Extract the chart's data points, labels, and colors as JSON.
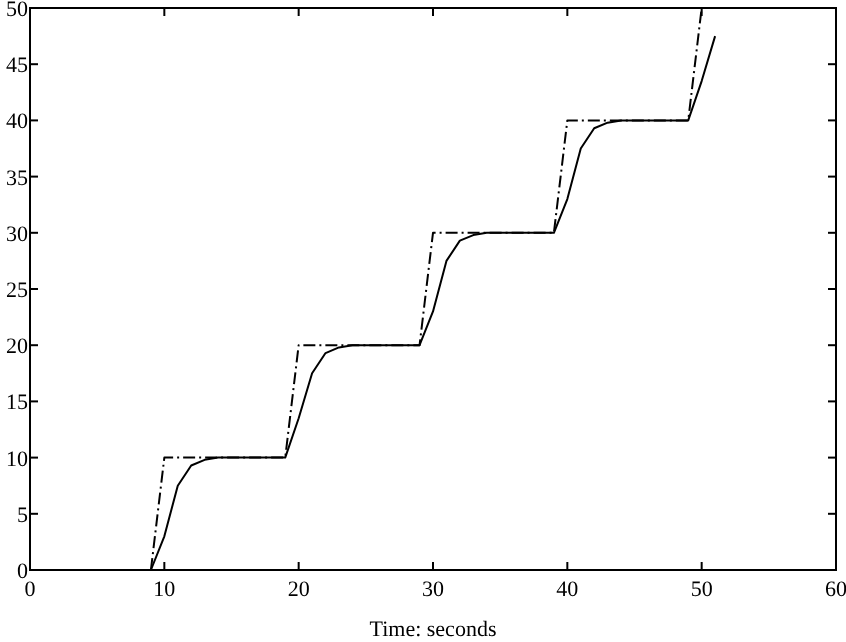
{
  "chart_data": {
    "type": "line",
    "xlabel": "Time: seconds",
    "xlim": [
      0,
      60
    ],
    "xticks": [
      0,
      10,
      20,
      30,
      40,
      50,
      60
    ],
    "ylim": [
      0,
      50
    ],
    "yticks": [
      0,
      5,
      10,
      15,
      20,
      25,
      30,
      35,
      40,
      45,
      50
    ],
    "grid": false,
    "series": [
      {
        "color": "#000000",
        "line_style": "dashed",
        "x": [
          9,
          10,
          19,
          20,
          29,
          30,
          39,
          40,
          49,
          50
        ],
        "values": [
          0,
          10,
          10,
          20,
          20,
          30,
          30,
          40,
          40,
          50
        ]
      },
      {
        "color": "#000000",
        "line_style": "solid",
        "x": [
          9,
          10,
          11,
          12,
          13,
          14,
          19,
          20,
          21,
          22,
          23,
          24,
          29,
          30,
          31,
          32,
          33,
          34,
          39,
          40,
          41,
          42,
          43,
          44,
          49,
          50,
          51
        ],
        "values": [
          0,
          3,
          7.5,
          9.3,
          9.8,
          10,
          10,
          13.5,
          17.5,
          19.3,
          19.8,
          20,
          20,
          23,
          27.5,
          29.3,
          29.8,
          30,
          30,
          33,
          37.5,
          39.3,
          39.8,
          40,
          40,
          43.5,
          47.5
        ]
      }
    ]
  }
}
